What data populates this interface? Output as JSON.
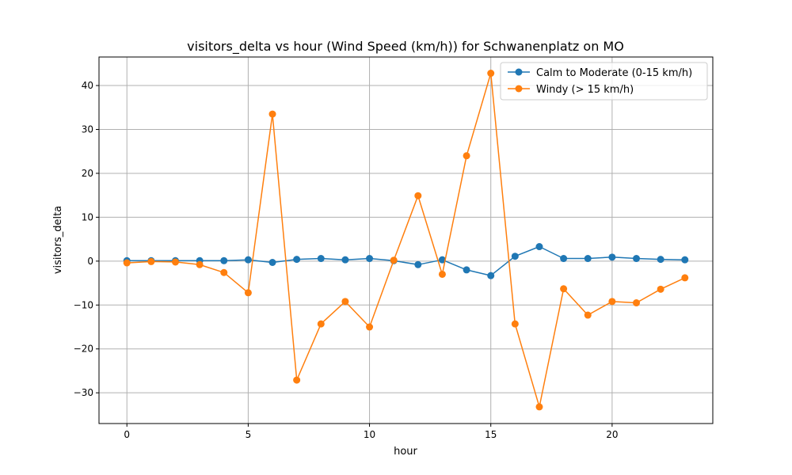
{
  "chart_data": {
    "type": "line",
    "title": "visitors_delta vs hour (Wind Speed (km/h)) for Schwanenplatz on MO",
    "xlabel": "hour",
    "ylabel": "visitors_delta",
    "xlim": [
      -1.15,
      24.15
    ],
    "ylim": [
      -37,
      46.5
    ],
    "xticks": [
      0,
      5,
      10,
      15,
      20
    ],
    "yticks": [
      -30,
      -20,
      -10,
      0,
      10,
      20,
      30,
      40
    ],
    "grid": true,
    "legend_position": "top-right",
    "x": [
      0,
      1,
      2,
      3,
      4,
      5,
      6,
      7,
      8,
      9,
      10,
      11,
      12,
      13,
      14,
      15,
      16,
      17,
      18,
      19,
      20,
      21,
      22,
      23
    ],
    "series": [
      {
        "name": "Calm to Moderate (0-15 km/h)",
        "color": "#1f77b4",
        "values": [
          0.1,
          0.1,
          0.1,
          0.1,
          0.1,
          0.3,
          -0.3,
          0.4,
          0.6,
          0.3,
          0.6,
          0.1,
          -0.8,
          0.3,
          -2.0,
          -3.3,
          1.1,
          3.3,
          0.6,
          0.6,
          0.9,
          0.6,
          0.4,
          0.3
        ]
      },
      {
        "name": "Windy (> 15 km/h)",
        "color": "#ff7f0e",
        "values": [
          -0.4,
          -0.1,
          -0.2,
          -0.8,
          -2.6,
          -7.2,
          33.5,
          -27.1,
          -14.3,
          -9.2,
          -15.0,
          0.2,
          14.9,
          -3.0,
          24.0,
          42.8,
          -14.3,
          -33.2,
          -6.3,
          -12.3,
          -9.2,
          -9.5,
          -6.4,
          -3.8
        ]
      }
    ]
  }
}
